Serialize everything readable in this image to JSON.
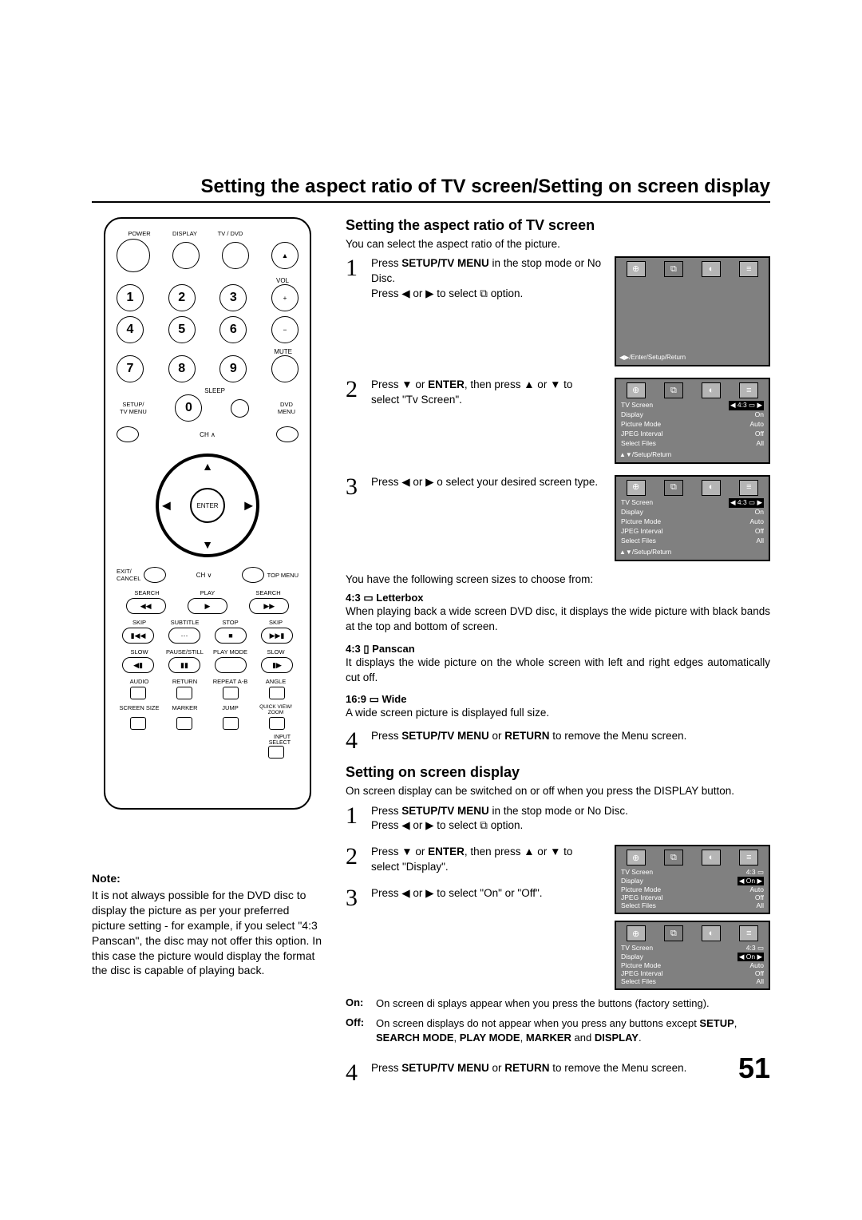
{
  "page": {
    "main_title": "Setting the aspect ratio of TV screen/Setting on screen display",
    "page_number": "51"
  },
  "remote": {
    "row1_labels": [
      "POWER",
      "DISPLAY",
      "TV / DVD",
      ""
    ],
    "vol": "VOL",
    "mute": "MUTE",
    "sleep": "SLEEP",
    "setup": "SETUP/\nTV MENU",
    "dvd_menu": "DVD\nMENU",
    "ch_up": "CH ∧",
    "ch_dn": "CH ∨",
    "enter": "ENTER",
    "exit": "EXIT/\nCANCEL",
    "top_menu": "TOP MENU",
    "row_search": [
      "SEARCH",
      "PLAY",
      "SEARCH"
    ],
    "row_skip": [
      "SKIP",
      "SUBTITLE",
      "STOP",
      "SKIP"
    ],
    "row_slow": [
      "SLOW",
      "PAUSE/STILL",
      "PLAY MODE",
      "SLOW"
    ],
    "row_audio": [
      "AUDIO",
      "RETURN",
      "REPEAT A-B",
      "ANGLE"
    ],
    "row_screen": [
      "SCREEN SIZE",
      "MARKER",
      "JUMP",
      "QUICK VIEW/\nZOOM"
    ],
    "input_select": "INPUT\nSELECT"
  },
  "note": {
    "heading": "Note:",
    "body": "It is not always possible for the DVD disc to display the picture as per your preferred picture setting - for example, if you select \"4:3 Panscan\", the disc may not offer this option. In this case the picture would display the format the disc is capable of playing back."
  },
  "aspect": {
    "title": "Setting the aspect ratio of TV screen",
    "intro": "You can select the aspect ratio of the picture.",
    "step1": "Press <b>SETUP/TV MENU</b> in the stop mode or No Disc.<br>Press ◀ or ▶ to select ⧉ option.",
    "step2": "Press ▼ or <b>ENTER</b>, then press ▲ or ▼ to select \"Tv Screen\".",
    "step3": "Press ◀ or ▶ o select your desired screen type.",
    "choose_intro": "You have the following screen sizes to choose from:",
    "letterbox_title": "4:3 ▭ Letterbox",
    "letterbox_body": "When playing back a wide screen DVD disc, it displays the wide picture with black bands at the top and bottom of screen.",
    "panscan_title": "4:3 ▯ Panscan",
    "panscan_body": "It displays the wide picture on the whole screen with left and right edges automatically cut off.",
    "wide_title": "16:9 ▭ Wide",
    "wide_body": "A wide screen picture is displayed full size.",
    "step4": "Press <b>SETUP/TV MENU</b> or <b>RETURN</b> to remove the Menu screen."
  },
  "display": {
    "title": "Setting on screen display",
    "intro": "On screen display can be switched on or off when you press the DISPLAY button.",
    "step1": "Press <b>SETUP/TV MENU</b> in the stop mode or No Disc.<br>Press ◀ or ▶ to select ⧉ option.",
    "step2": "Press ▼ or <b>ENTER</b>, then press ▲ or ▼ to select \"Display\".",
    "step3": "Press ◀ or ▶ to select \"On\" or \"Off\".",
    "on_label": "On:",
    "on_body": "On screen di splays appear when you press the buttons (factory setting).",
    "off_label": "Off:",
    "off_body": "On screen displays do not appear when you press any buttons except <b>SETUP</b>, <b>SEARCH MODE</b>, <b>PLAY MODE</b>, <b>MARKER</b> and <b>DISPLAY</b>.",
    "step4": "Press <b>SETUP/TV MENU</b> or <b>RETURN</b> to remove the Menu screen."
  },
  "osd": {
    "menu_items": [
      [
        "TV Screen",
        "4:3 ▭"
      ],
      [
        "Display",
        "On"
      ],
      [
        "Picture Mode",
        "Auto"
      ],
      [
        "JPEG Interval",
        "Off"
      ],
      [
        "Select Files",
        "All"
      ]
    ],
    "footer1": "◀▶/Enter/Setup/Return",
    "footer2": "▲▼/Setup/Return",
    "tv_screen_hl": "◀ 4:3 ▭ ▶",
    "display_hl": "◀ On ▶"
  }
}
